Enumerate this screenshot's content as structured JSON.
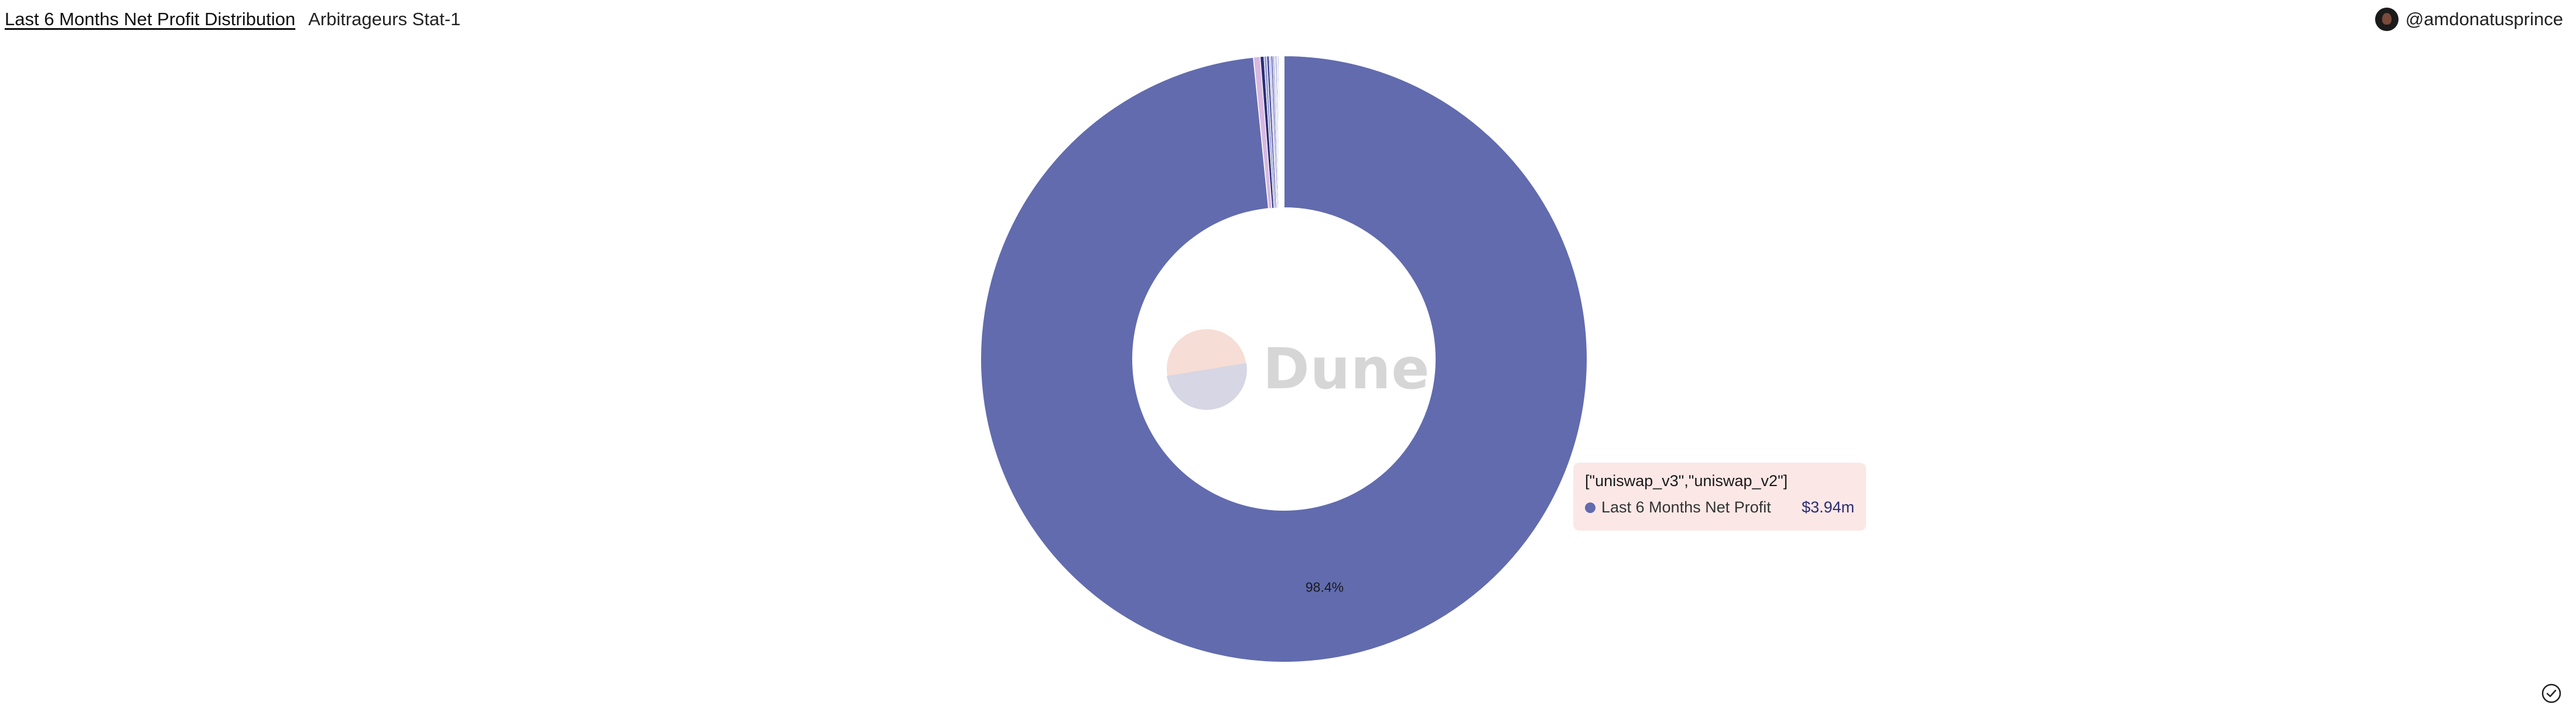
{
  "header": {
    "title": "Last 6 Months Net Profit Distribution",
    "subtitle": "Arbitrageurs Stat-1"
  },
  "author": {
    "name": "@amdonatusprince"
  },
  "watermark": {
    "text": "Dune"
  },
  "tooltip": {
    "title": "[\"uniswap_v3\",\"uniswap_v2\"]",
    "series_label": "Last 6 Months Net Profit",
    "value": "$3.94m",
    "color": "#616bae"
  },
  "chart_data": {
    "type": "pie",
    "donut": true,
    "series_name": "Last 6 Months Net Profit",
    "slices": [
      {
        "label": "[\"uniswap_v3\",\"uniswap_v2\"]",
        "percent": 98.4,
        "value_label": "98.4%",
        "color": "#616bae"
      },
      {
        "label": "",
        "percent": 0.35,
        "color": "#d8b8e0"
      },
      {
        "label": "",
        "percent": 0.2,
        "color": "#2b2d75"
      },
      {
        "label": "",
        "percent": 0.15,
        "color": "#9a9fd8"
      },
      {
        "label": "",
        "percent": 0.12,
        "color": "#3b3e8f"
      },
      {
        "label": "",
        "percent": 0.1,
        "color": "#b6bbe8"
      },
      {
        "label": "",
        "percent": 0.09,
        "color": "#4b4f9e"
      },
      {
        "label": "",
        "percent": 0.08,
        "color": "#8a8fce"
      },
      {
        "label": "",
        "percent": 0.07,
        "color": "#c5c8ef"
      },
      {
        "label": "",
        "percent": 0.06,
        "color": "#5a5fb0"
      },
      {
        "label": "",
        "percent": 0.05,
        "color": "#a3a8e0"
      },
      {
        "label": "",
        "percent": 0.05,
        "color": "#6e73c2"
      },
      {
        "label": "",
        "percent": 0.05,
        "color": "#d0d3f4"
      },
      {
        "label": "",
        "percent": 0.04,
        "color": "#7b80cc"
      },
      {
        "label": "",
        "percent": 0.04,
        "color": "#bfc3ee"
      },
      {
        "label": "",
        "percent": 0.15,
        "color": "#ffffff"
      }
    ]
  }
}
